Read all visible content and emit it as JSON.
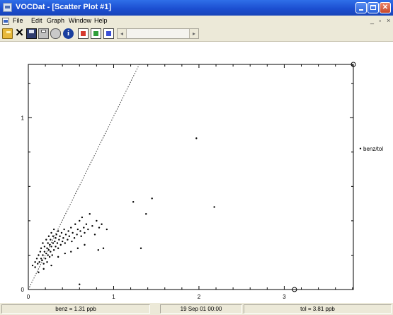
{
  "window": {
    "title": "VOCDat - [Scatter Plot #1]",
    "minimize_icon": "minimize-icon",
    "maximize_icon": "maximize-icon",
    "close_icon": "close-icon",
    "close_glyph": "✕"
  },
  "menu": {
    "items": [
      "File",
      "Edit",
      "Graph",
      "Window",
      "Help"
    ],
    "mdi_minimize": "_",
    "mdi_restore": "▫",
    "mdi_close": "×"
  },
  "toolbar": {
    "close_glyph": "✕",
    "info_glyph": "i",
    "scroll_left": "◂",
    "scroll_right": "▸",
    "icons": [
      "open-folder-icon",
      "close-icon",
      "save-disk-icon",
      "print-icon",
      "print-preview-icon",
      "info-icon",
      "graph-red-icon",
      "graph-green-icon",
      "graph-blue-icon"
    ]
  },
  "status": {
    "benz": "benz = 1.31 ppb",
    "datetime": "19 Sep 01  00:00",
    "tol": "tol = 3.81 ppb"
  },
  "chart_data": {
    "type": "scatter",
    "title": "",
    "xlabel": "",
    "ylabel": "",
    "xlim": [
      0,
      3.81
    ],
    "ylim": [
      0,
      1.31
    ],
    "x_ticks": [
      "0",
      "1",
      "2",
      "3"
    ],
    "y_ticks": [
      "0",
      "1"
    ],
    "grid": false,
    "legend": {
      "position": "right",
      "entries": [
        "benz/tol"
      ]
    },
    "reference_line": {
      "style": "dotted",
      "from": [
        0,
        0
      ],
      "to": [
        1.3,
        1.31
      ]
    },
    "cursor_markers": [
      [
        3.81,
        1.31
      ],
      [
        3.12,
        0
      ]
    ],
    "series": [
      {
        "name": "benz/tol",
        "points": [
          [
            0.05,
            0.14
          ],
          [
            0.08,
            0.13
          ],
          [
            0.08,
            0.16
          ],
          [
            0.1,
            0.18
          ],
          [
            0.11,
            0.15
          ],
          [
            0.12,
            0.2
          ],
          [
            0.13,
            0.16
          ],
          [
            0.14,
            0.22
          ],
          [
            0.15,
            0.18
          ],
          [
            0.15,
            0.24
          ],
          [
            0.16,
            0.17
          ],
          [
            0.17,
            0.2
          ],
          [
            0.17,
            0.27
          ],
          [
            0.18,
            0.15
          ],
          [
            0.19,
            0.22
          ],
          [
            0.19,
            0.25
          ],
          [
            0.2,
            0.18
          ],
          [
            0.21,
            0.21
          ],
          [
            0.21,
            0.29
          ],
          [
            0.22,
            0.16
          ],
          [
            0.22,
            0.24
          ],
          [
            0.23,
            0.2
          ],
          [
            0.23,
            0.27
          ],
          [
            0.24,
            0.23
          ],
          [
            0.24,
            0.31
          ],
          [
            0.25,
            0.19
          ],
          [
            0.25,
            0.26
          ],
          [
            0.26,
            0.22
          ],
          [
            0.26,
            0.29
          ],
          [
            0.27,
            0.25
          ],
          [
            0.27,
            0.33
          ],
          [
            0.28,
            0.2
          ],
          [
            0.29,
            0.27
          ],
          [
            0.29,
            0.31
          ],
          [
            0.3,
            0.23
          ],
          [
            0.3,
            0.35
          ],
          [
            0.31,
            0.28
          ],
          [
            0.32,
            0.25
          ],
          [
            0.32,
            0.3
          ],
          [
            0.33,
            0.32
          ],
          [
            0.34,
            0.27
          ],
          [
            0.35,
            0.24
          ],
          [
            0.35,
            0.34
          ],
          [
            0.36,
            0.29
          ],
          [
            0.37,
            0.31
          ],
          [
            0.38,
            0.26
          ],
          [
            0.39,
            0.33
          ],
          [
            0.4,
            0.28
          ],
          [
            0.41,
            0.3
          ],
          [
            0.42,
            0.35
          ],
          [
            0.43,
            0.27
          ],
          [
            0.44,
            0.32
          ],
          [
            0.46,
            0.29
          ],
          [
            0.47,
            0.34
          ],
          [
            0.48,
            0.31
          ],
          [
            0.5,
            0.36
          ],
          [
            0.51,
            0.28
          ],
          [
            0.52,
            0.33
          ],
          [
            0.54,
            0.3
          ],
          [
            0.55,
            0.38
          ],
          [
            0.57,
            0.32
          ],
          [
            0.58,
            0.35
          ],
          [
            0.6,
            0.4
          ],
          [
            0.61,
            0.34
          ],
          [
            0.62,
            0.31
          ],
          [
            0.63,
            0.42
          ],
          [
            0.65,
            0.36
          ],
          [
            0.66,
            0.33
          ],
          [
            0.68,
            0.38
          ],
          [
            0.7,
            0.35
          ],
          [
            0.72,
            0.44
          ],
          [
            0.75,
            0.37
          ],
          [
            0.78,
            0.32
          ],
          [
            0.8,
            0.4
          ],
          [
            0.83,
            0.36
          ],
          [
            0.86,
            0.38
          ],
          [
            0.88,
            0.24
          ],
          [
            0.92,
            0.35
          ],
          [
            0.12,
            0.1
          ],
          [
            0.18,
            0.12
          ],
          [
            0.27,
            0.14
          ],
          [
            0.35,
            0.19
          ],
          [
            0.43,
            0.21
          ],
          [
            0.5,
            0.22
          ],
          [
            0.58,
            0.24
          ],
          [
            0.66,
            0.26
          ],
          [
            0.82,
            0.23
          ],
          [
            1.23,
            0.51
          ],
          [
            1.32,
            0.24
          ],
          [
            1.38,
            0.44
          ],
          [
            1.45,
            0.53
          ],
          [
            1.97,
            0.88
          ],
          [
            2.18,
            0.48
          ],
          [
            0.6,
            0.03
          ]
        ]
      }
    ]
  }
}
